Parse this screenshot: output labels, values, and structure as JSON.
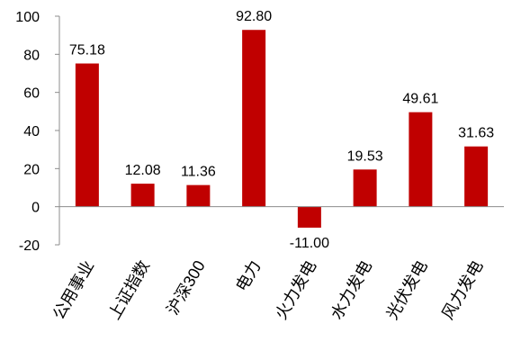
{
  "chart_data": {
    "type": "bar",
    "categories": [
      "公用事业",
      "上证指数",
      "沪深300",
      "电力",
      "火力发电",
      "水力发电",
      "光伏发电",
      "风力发电"
    ],
    "series": [
      {
        "values": [
          75.18,
          12.08,
          11.36,
          92.8,
          -11.0,
          19.53,
          49.61,
          31.63
        ],
        "color": "#C00000"
      }
    ],
    "data_labels": [
      "75.18",
      "12.08",
      "11.36",
      "92.80",
      "-11.00",
      "19.53",
      "49.61",
      "31.63"
    ],
    "ylim": [
      -20,
      100
    ],
    "yticks": [
      -20,
      0,
      20,
      40,
      60,
      80,
      100
    ],
    "ytick_labels": [
      "-20",
      "0",
      "20",
      "40",
      "60",
      "80",
      "100"
    ],
    "title": "",
    "xlabel": "",
    "ylabel": "",
    "grid": false,
    "legend": "none",
    "xtick_rotation": "diagonal"
  }
}
